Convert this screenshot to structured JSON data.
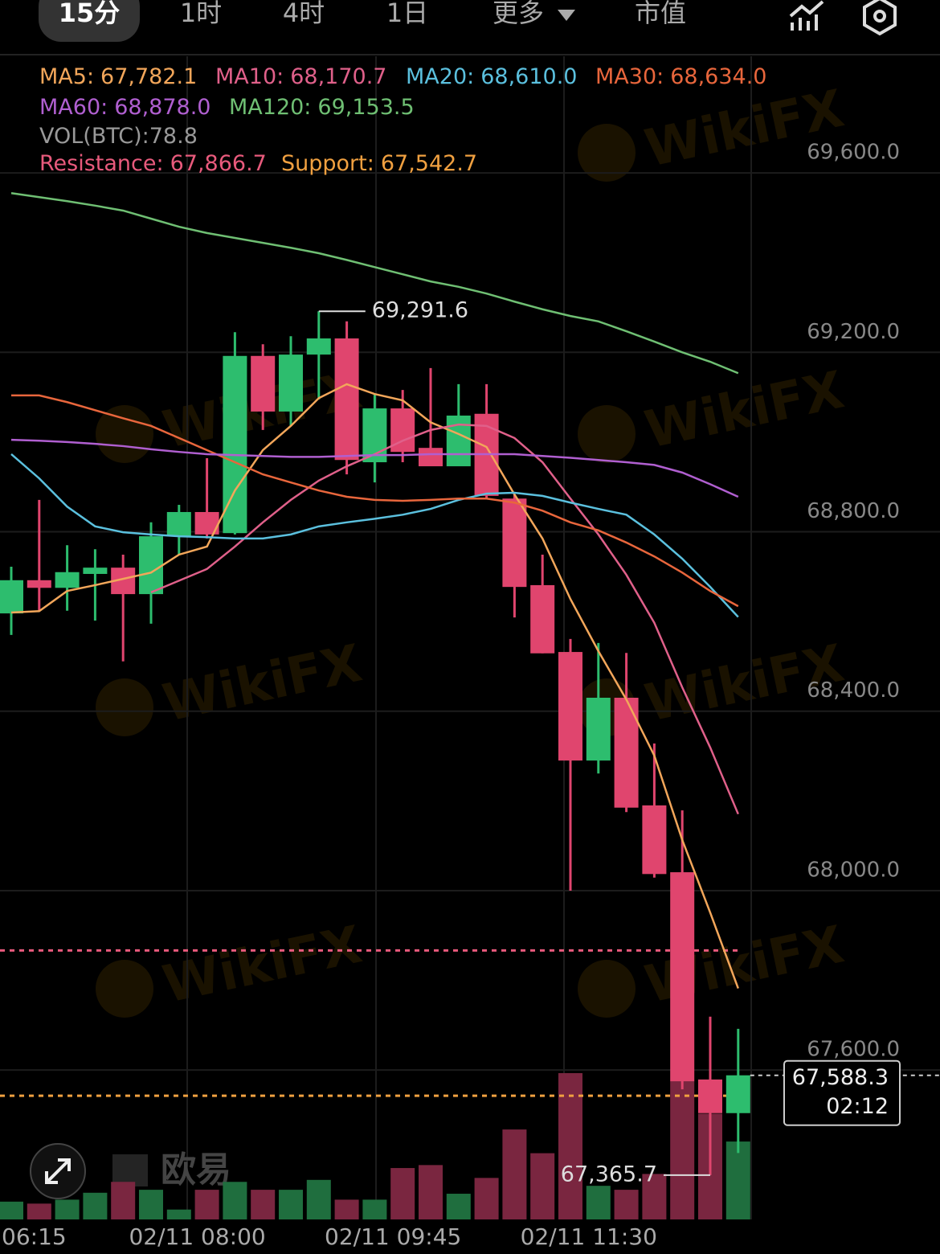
{
  "tabs": [
    "15分",
    "1时",
    "4时",
    "1日",
    "更多",
    "市值"
  ],
  "watermark": "WikiFX",
  "brand": "欧易",
  "countdown": "02:12",
  "chart_data": {
    "type": "candlestick",
    "categories": [
      "06:15",
      null,
      null,
      null,
      null,
      null,
      null,
      "02/11 08:00",
      null,
      null,
      null,
      null,
      null,
      null,
      "02/11 09:45",
      null,
      null,
      null,
      null,
      null,
      null,
      "02/11 11:30",
      null,
      null,
      null,
      null,
      null
    ],
    "open": [
      68618,
      68692,
      68675,
      68706,
      68720,
      68661,
      68790,
      68844,
      68797,
      69192,
      69068,
      69195,
      69231,
      68955,
      69075,
      68987,
      68946,
      69063,
      68874,
      68681,
      68532,
      68290,
      68430,
      68190,
      68041,
      67579,
      67504
    ],
    "high": [
      68722,
      68871,
      68770,
      68761,
      68749,
      68821,
      68860,
      68964,
      69245,
      69218,
      69236,
      69291.6,
      69269,
      69107,
      69116,
      69165,
      69129,
      69129,
      68883,
      68749,
      68561,
      68552,
      68530,
      68328,
      68179,
      67719,
      67692
    ],
    "low": [
      68570,
      68624,
      68624,
      68602,
      68511,
      68595,
      68749,
      68785,
      68794,
      69027,
      69036,
      69095,
      68928,
      68910,
      68955,
      68946,
      68946,
      68874,
      68609,
      68529,
      68000,
      68261,
      68175,
      68029,
      67557,
      67365.7,
      67415
    ],
    "close": [
      68692,
      68675,
      68710,
      68720,
      68661,
      68790,
      68844,
      68794,
      69192,
      69068,
      69195,
      69231,
      68960,
      69075,
      68978,
      68946,
      69059,
      68880,
      68677,
      68529,
      68290,
      68430,
      68185,
      68037,
      67575,
      67504,
      67588.3
    ],
    "high_value_labels": [
      null,
      null,
      null,
      null,
      null,
      null,
      null,
      null,
      null,
      null,
      null,
      "69,291.6",
      null,
      null,
      null,
      null,
      null,
      null,
      null,
      null,
      null,
      null,
      null,
      null,
      null,
      null,
      null
    ],
    "low_value_labels": [
      null,
      null,
      null,
      null,
      null,
      null,
      null,
      null,
      null,
      null,
      null,
      null,
      null,
      null,
      null,
      null,
      null,
      null,
      null,
      null,
      null,
      null,
      null,
      null,
      null,
      "67,365.7",
      null
    ],
    "close_value_labels": [
      null,
      null,
      null,
      null,
      null,
      null,
      null,
      null,
      null,
      null,
      null,
      null,
      null,
      null,
      null,
      null,
      null,
      null,
      null,
      null,
      null,
      null,
      null,
      null,
      null,
      null,
      "67,588.3"
    ],
    "up_color": "#2dbd6e",
    "down_color": "#e0456e",
    "volume": {
      "name": "VOL(BTC):",
      "up_color": "#1f6e3e",
      "down_color": "#7a2640",
      "values": [
        18,
        16,
        20,
        27,
        38,
        30,
        10,
        30,
        38,
        30,
        30,
        40,
        20,
        20,
        52,
        55,
        26,
        42,
        91,
        67,
        148,
        34,
        30,
        46,
        140,
        107,
        78.8
      ]
    },
    "series": [
      {
        "name": "MA5:",
        "color": "#f2a65a",
        "values": [
          68620,
          68623,
          68668,
          68681,
          68695,
          68709,
          68749,
          68767,
          68892,
          68982,
          69036,
          69098,
          69129,
          69107,
          69093,
          69044,
          69018,
          68989,
          68883,
          68785,
          68650,
          68534,
          68426,
          68301,
          68113,
          67951,
          67782.1
        ],
        "value_labels": [
          null,
          null,
          null,
          null,
          null,
          null,
          null,
          null,
          null,
          null,
          null,
          null,
          null,
          null,
          null,
          null,
          null,
          null,
          null,
          null,
          null,
          null,
          null,
          null,
          null,
          null,
          "67,782.1"
        ]
      },
      {
        "name": "MA10:",
        "color": "#e0608a",
        "values": [
          null,
          null,
          null,
          null,
          null,
          68665,
          68691,
          68717,
          68767,
          68821,
          68871,
          68914,
          68946,
          68973,
          69003,
          69027,
          69039,
          69036,
          69009,
          68955,
          68874,
          68794,
          68704,
          68597,
          68453,
          68319,
          68170.7
        ],
        "value_labels": [
          null,
          null,
          null,
          null,
          null,
          null,
          null,
          null,
          null,
          null,
          null,
          null,
          null,
          null,
          null,
          null,
          null,
          null,
          null,
          null,
          null,
          null,
          null,
          null,
          null,
          null,
          "68,170.7"
        ]
      },
      {
        "name": "MA20:",
        "color": "#5bc0de",
        "values": [
          68973,
          68919,
          68856,
          68812,
          68799,
          68794,
          68790,
          68788,
          68785,
          68785,
          68794,
          68812,
          68821,
          68829,
          68838,
          68851,
          68871,
          68885,
          68887,
          68880,
          68865,
          68851,
          68838,
          68794,
          68740,
          68677,
          68610.0
        ],
        "value_labels": [
          null,
          null,
          null,
          null,
          null,
          null,
          null,
          null,
          null,
          null,
          null,
          null,
          null,
          null,
          null,
          null,
          null,
          null,
          null,
          null,
          null,
          null,
          null,
          null,
          null,
          null,
          "68,610.0"
        ]
      },
      {
        "name": "MA30:",
        "color": "#e8663c",
        "values": [
          69104,
          69104,
          69089,
          69071,
          69053,
          69036,
          69009,
          68982,
          68955,
          68928,
          68910,
          68892,
          68878,
          68871,
          68869,
          68871,
          68874,
          68874,
          68865,
          68847,
          68821,
          68803,
          68776,
          68745,
          68709,
          68668,
          68634.0
        ],
        "value_labels": [
          null,
          null,
          null,
          null,
          null,
          null,
          null,
          null,
          null,
          null,
          null,
          null,
          null,
          null,
          null,
          null,
          null,
          null,
          null,
          null,
          null,
          null,
          null,
          null,
          null,
          null,
          "68,634.0"
        ]
      },
      {
        "name": "MA60:",
        "color": "#b05fd0",
        "values": [
          69005,
          69003,
          69000,
          68996,
          68991,
          68984,
          68978,
          68973,
          68971,
          68969,
          68967,
          68967,
          68969,
          68971,
          68971,
          68973,
          68973,
          68973,
          68973,
          68969,
          68965,
          68960,
          68955,
          68949,
          68932,
          68906,
          68878.0
        ],
        "value_labels": [
          null,
          null,
          null,
          null,
          null,
          null,
          null,
          null,
          null,
          null,
          null,
          null,
          null,
          null,
          null,
          null,
          null,
          null,
          null,
          null,
          null,
          null,
          null,
          null,
          null,
          null,
          "68,878.0"
        ]
      },
      {
        "name": "MA120:",
        "color": "#6fbf73",
        "values": [
          69555,
          69546,
          69537,
          69527,
          69516,
          69498,
          69480,
          69466,
          69455,
          69444,
          69433,
          69421,
          69406,
          69390,
          69374,
          69358,
          69346,
          69331,
          69313,
          69296,
          69281,
          69269,
          69247,
          69224,
          69200,
          69179,
          69153.5
        ],
        "value_labels": [
          null,
          null,
          null,
          null,
          null,
          null,
          null,
          null,
          null,
          null,
          null,
          null,
          null,
          null,
          null,
          null,
          null,
          null,
          null,
          null,
          null,
          null,
          null,
          null,
          null,
          null,
          "69,153.5"
        ]
      }
    ],
    "levels": [
      {
        "name": "Resistance:",
        "value": 67866.7,
        "label": "67,866.7",
        "color": "#e85a7c"
      },
      {
        "name": "Support:",
        "value": 67542.7,
        "label": "67,542.7",
        "color": "#f0a040"
      }
    ],
    "ylim": [
      67267,
      69860
    ],
    "yticks": [
      {
        "value": 69600,
        "label": "69,600.0"
      },
      {
        "value": 69200,
        "label": "69,200.0"
      },
      {
        "value": 68800,
        "label": "68,800.0"
      },
      {
        "value": 68400,
        "label": "68,400.0"
      },
      {
        "value": 68000,
        "label": "68,000.0"
      },
      {
        "value": 67600,
        "label": "67,600.0"
      }
    ],
    "grid": true
  }
}
